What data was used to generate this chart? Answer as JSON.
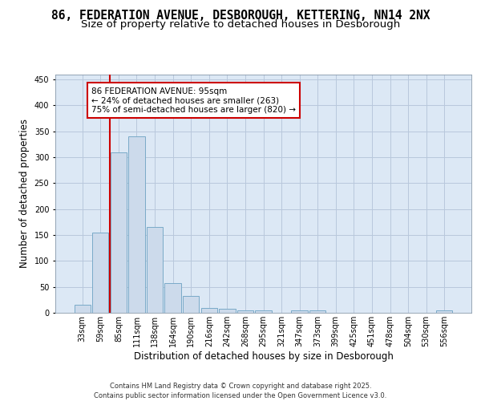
{
  "title_line1": "86, FEDERATION AVENUE, DESBOROUGH, KETTERING, NN14 2NX",
  "title_line2": "Size of property relative to detached houses in Desborough",
  "xlabel": "Distribution of detached houses by size in Desborough",
  "ylabel": "Number of detached properties",
  "categories": [
    "33sqm",
    "59sqm",
    "85sqm",
    "111sqm",
    "138sqm",
    "164sqm",
    "190sqm",
    "216sqm",
    "242sqm",
    "268sqm",
    "295sqm",
    "321sqm",
    "347sqm",
    "373sqm",
    "399sqm",
    "425sqm",
    "451sqm",
    "478sqm",
    "504sqm",
    "530sqm",
    "556sqm"
  ],
  "values": [
    15,
    155,
    310,
    340,
    165,
    57,
    33,
    10,
    8,
    5,
    4,
    0,
    5,
    5,
    0,
    0,
    0,
    0,
    0,
    0,
    4
  ],
  "bar_color": "#ccdaeb",
  "bar_edgecolor": "#7aaac8",
  "vline_color": "#cc0000",
  "annotation_text": "86 FEDERATION AVENUE: 95sqm\n← 24% of detached houses are smaller (263)\n75% of semi-detached houses are larger (820) →",
  "annotation_box_facecolor": "#ffffff",
  "annotation_box_edgecolor": "#cc0000",
  "ylim": [
    0,
    460
  ],
  "yticks": [
    0,
    50,
    100,
    150,
    200,
    250,
    300,
    350,
    400,
    450
  ],
  "grid_color": "#b8c8dc",
  "bg_color": "#dce8f5",
  "footer": "Contains HM Land Registry data © Crown copyright and database right 2025.\nContains public sector information licensed under the Open Government Licence v3.0.",
  "title_fontsize": 10.5,
  "subtitle_fontsize": 9.5,
  "axis_label_fontsize": 8.5,
  "tick_fontsize": 7,
  "annotation_fontsize": 7.5,
  "footer_fontsize": 6
}
